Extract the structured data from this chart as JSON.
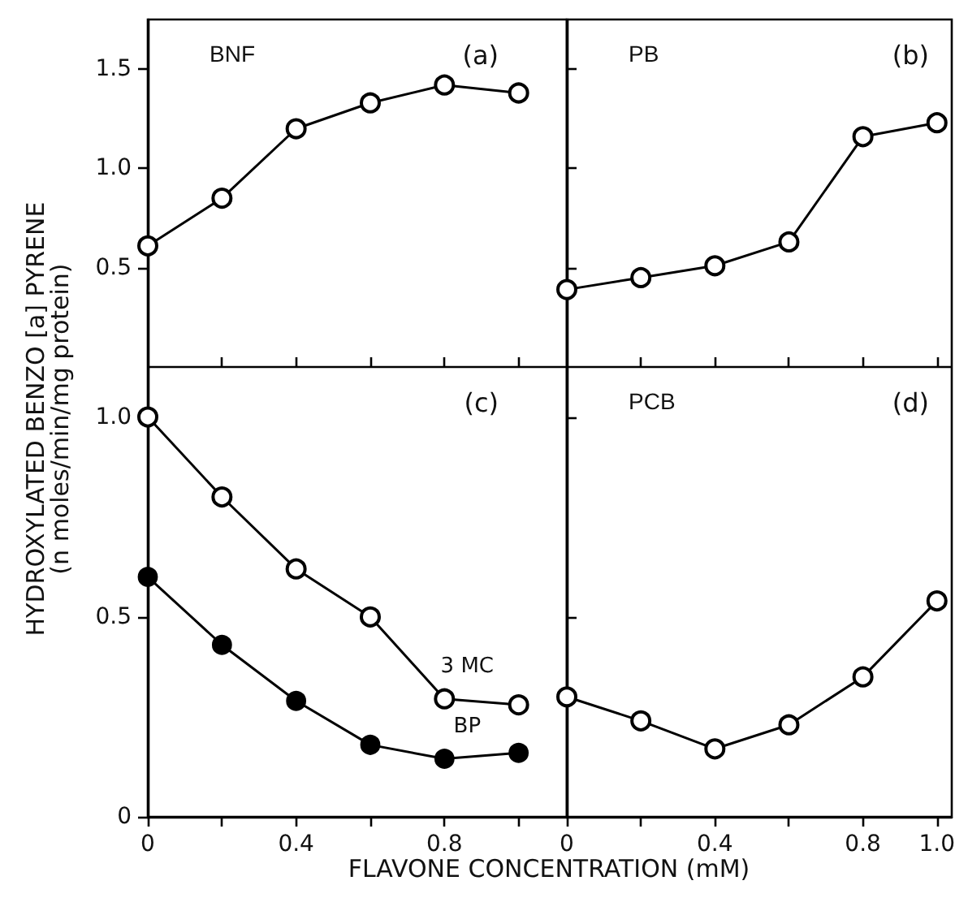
{
  "chart_data": [
    {
      "type": "line",
      "title": "BNF",
      "annotations": [
        "(a)"
      ],
      "ylabel": "HYDROXYLATED BENZO [a] PYRENE\n(n moles/min/mg protein)",
      "x": [
        0,
        0.2,
        0.4,
        0.6,
        0.8,
        1.0
      ],
      "series": [
        {
          "color": "#000000",
          "values": [
            0.61,
            0.85,
            1.2,
            1.33,
            1.42,
            1.38
          ]
        }
      ],
      "xlim": [
        0,
        1.13
      ],
      "ylim": [
        0,
        1.75
      ],
      "xticks": [
        0.2,
        0.4,
        0.6,
        0.8,
        1.0
      ],
      "yticks": [
        0.5,
        {
          "value": 1,
          "label": "1.0"
        },
        1.5
      ],
      "tick_labels": "y",
      "marker": "circle",
      "line_style": "solid",
      "grid": false
    },
    {
      "type": "line",
      "title": "PB",
      "annotations": [
        "(b)"
      ],
      "x": [
        0,
        0.2,
        0.4,
        0.6,
        0.8,
        1.0
      ],
      "series": [
        {
          "color": "#000000",
          "values": [
            0.39,
            0.45,
            0.51,
            0.63,
            1.16,
            1.23
          ]
        }
      ],
      "xlim": [
        0,
        1.04
      ],
      "ylim": [
        0,
        1.75
      ],
      "xticks": [
        0.2,
        0.4,
        0.6,
        0.8,
        1.0
      ],
      "yticks": [
        0.5,
        1,
        1.5
      ],
      "tick_labels": false,
      "marker": "circle",
      "line_style": "solid",
      "grid": false
    },
    {
      "type": "line",
      "annotations": [
        "(c)"
      ],
      "xlabel": "FLAVONE CONCENTRATION (mM)",
      "x": [
        0,
        0.2,
        0.4,
        0.6,
        0.8,
        1.0
      ],
      "series": [
        {
          "name": "3 MC",
          "color": "#000000",
          "values": [
            1.0,
            0.8,
            0.62,
            0.5,
            0.295,
            0.28
          ]
        },
        {
          "name": "BP",
          "color": "#000000",
          "marker": "circle",
          "values": [
            0.6,
            0.43,
            0.29,
            0.18,
            0.145,
            0.16
          ]
        }
      ],
      "xlim": [
        0,
        1.13
      ],
      "ylim": [
        0,
        1.125
      ],
      "xticks": [
        0,
        {
          "value": 0.2,
          "label": null
        },
        0.4,
        {
          "value": 0.6,
          "label": null
        },
        0.8,
        {
          "value": 1.0,
          "label": null
        }
      ],
      "yticks": [
        0,
        0.5,
        {
          "value": 1,
          "label": "1.0"
        }
      ],
      "marker": "circle",
      "line_style": "solid",
      "grid": false
    },
    {
      "type": "line",
      "title": "PCB",
      "annotations": [
        "(d)"
      ],
      "x": [
        0,
        0.2,
        0.4,
        0.6,
        0.8,
        1.0
      ],
      "series": [
        {
          "color": "#000000",
          "values": [
            0.3,
            0.24,
            0.17,
            0.23,
            0.35,
            0.54
          ]
        }
      ],
      "xlim": [
        0,
        1.04
      ],
      "ylim": [
        0,
        1.125
      ],
      "xticks": [
        0,
        {
          "value": 0.2,
          "label": null
        },
        0.4,
        {
          "value": 0.6,
          "label": null
        },
        0.8,
        {
          "value": 1.0,
          "label": "1.0"
        }
      ],
      "yticks": [
        0.5,
        1
      ],
      "tick_labels": "x",
      "marker": "circle",
      "line_style": "solid",
      "grid": false
    }
  ]
}
